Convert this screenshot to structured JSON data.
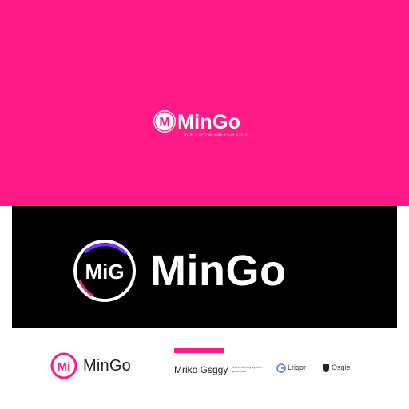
{
  "colors": {
    "brand_pink": "#ff1a86",
    "black": "#000000",
    "white": "#ffffff",
    "accent_purple": "#7a2cff"
  },
  "pink_panel": {
    "brand_name": "MinGo",
    "monogram": "M",
    "tagline": "WORLD OF THE VIBE YOUR STYLE"
  },
  "black_panel": {
    "brand_name": "MinGo",
    "monogram": "MiG"
  },
  "bottom_row": {
    "small_logo": {
      "brand_name": "MinGo",
      "monogram": "Mi"
    },
    "mini_brand_1": {
      "name": "Mriko Gsggy",
      "tagline": "Brand identity system guidelines"
    },
    "mini_brand_2": {
      "name": "Lrigor",
      "icon": "g-circle-icon"
    },
    "mini_brand_3": {
      "name": "Osgie",
      "icon": "shield-icon"
    }
  }
}
